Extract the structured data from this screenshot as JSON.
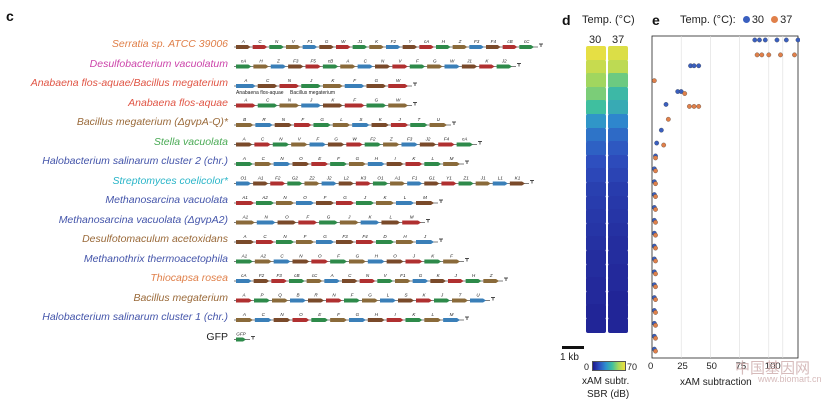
{
  "panels": {
    "c": "c",
    "d": "d",
    "e": "e"
  },
  "rows": [
    {
      "label": "Serratia sp. ATCC 39006",
      "color": "#e0804a",
      "italic": true,
      "genes": [
        "A",
        "C",
        "N",
        "V",
        "F1",
        "G",
        "W",
        "J1",
        "K",
        "F2",
        "Y",
        "cA",
        "H",
        "Z",
        "F3",
        "F4",
        "cB",
        "cC"
      ]
    },
    {
      "label": "Desulfobacterium vacuolatum",
      "color": "#cc44aa",
      "italic": true,
      "genes": [
        "cA",
        "H",
        "Z",
        "F3",
        "F5",
        "cB",
        "A",
        "C",
        "N",
        "V",
        "F",
        "G",
        "W",
        "J1",
        "K",
        "J2"
      ]
    },
    {
      "label": "Anabaena flos-aquae/Bacillus megaterium",
      "color": "#e05545",
      "italic": true,
      "genes": [
        "A",
        "C",
        "N",
        "J",
        "K",
        "F",
        "G",
        "W"
      ]
    },
    {
      "label": "Anabaena flos-aquae",
      "color": "#e05545",
      "italic": true,
      "genes": [
        "A",
        "C",
        "N",
        "J",
        "K",
        "F",
        "G",
        "W"
      ]
    },
    {
      "label": "Bacillus megaterium (ΔgvpA-Q)*",
      "color": "#9a6a3a",
      "italic": true,
      "genes": [
        "B",
        "R",
        "N",
        "F",
        "G",
        "L",
        "S",
        "K",
        "J",
        "T",
        "U"
      ]
    },
    {
      "label": "Stella vacuolata",
      "color": "#4aaa55",
      "italic": true,
      "genes": [
        "A",
        "C",
        "N",
        "V",
        "F",
        "G",
        "W",
        "F2",
        "Z",
        "F3",
        "J2",
        "F4",
        "cA"
      ]
    },
    {
      "label": "Halobacterium salinarum cluster 2 (chr.)",
      "color": "#4455aa",
      "italic": true,
      "genes": [
        "A",
        "C",
        "N",
        "O",
        "E",
        "F",
        "G",
        "H",
        "I",
        "K",
        "L",
        "M"
      ]
    },
    {
      "label": "Streptomyces coelicolor*",
      "color": "#2ab5c8",
      "italic": true,
      "genes": [
        "O1",
        "A1",
        "F2",
        "G2",
        "Z2",
        "J2",
        "L2",
        "K3",
        "O1",
        "A1",
        "F1",
        "G1",
        "Y1",
        "Z1",
        "J1",
        "L1",
        "K1"
      ]
    },
    {
      "label": "Methanosarcina vacuolata",
      "color": "#4455aa",
      "italic": true,
      "genes": [
        "A1",
        "A2",
        "N",
        "O",
        "F",
        "G",
        "J",
        "K",
        "L",
        "M"
      ]
    },
    {
      "label": "Methanosarcina vacuolata (ΔgvpA2)",
      "color": "#4455aa",
      "italic": true,
      "genes": [
        "A1",
        "N",
        "O",
        "F",
        "G",
        "J",
        "K",
        "L",
        "M"
      ]
    },
    {
      "label": "Desulfotomaculum acetoxidans",
      "color": "#9a6a3a",
      "italic": true,
      "genes": [
        "A",
        "C",
        "N",
        "F",
        "G",
        "F3",
        "F4",
        "D",
        "H",
        "J"
      ]
    },
    {
      "label": "Methanothrix thermoacetophila",
      "color": "#4455aa",
      "italic": true,
      "genes": [
        "A1",
        "A2",
        "C",
        "N",
        "O",
        "F",
        "G",
        "H",
        "O",
        "J",
        "K",
        "F"
      ]
    },
    {
      "label": "Thiocapsa rosea",
      "color": "#e0804a",
      "italic": true,
      "genes": [
        "cA",
        "F2",
        "F3",
        "cB",
        "cC",
        "A",
        "C",
        "N",
        "V",
        "F1",
        "G",
        "K",
        "J",
        "H",
        "Z"
      ]
    },
    {
      "label": "Bacillus megaterium",
      "color": "#9a6a3a",
      "italic": true,
      "genes": [
        "A",
        "P",
        "Q",
        "B",
        "R",
        "N",
        "F",
        "G",
        "L",
        "S",
        "K",
        "J",
        "T",
        "U"
      ]
    },
    {
      "label": "Halobacterium salinarum cluster 1 (chr.)",
      "color": "#4455aa",
      "italic": true,
      "genes": [
        "A",
        "C",
        "N",
        "O",
        "E",
        "F",
        "G",
        "H",
        "I",
        "K",
        "L",
        "M"
      ]
    },
    {
      "label": "GFP",
      "color": "#222222",
      "italic": false,
      "genes": [
        "GFP"
      ]
    }
  ],
  "cluster_sublabels": [
    "Anabaena flos-aquae",
    "Bacillus megaterium"
  ],
  "heatmap": {
    "title": "Temp. (°C)",
    "temps": [
      "30",
      "37"
    ],
    "values_30": [
      68,
      62,
      55,
      50,
      42,
      30,
      22,
      18,
      14,
      12,
      10,
      9,
      8,
      7,
      6,
      5,
      5,
      4,
      4,
      3,
      3
    ],
    "values_37": [
      66,
      60,
      48,
      40,
      36,
      26,
      20,
      16,
      13,
      11,
      9,
      8,
      7,
      6,
      5,
      5,
      4,
      4,
      3,
      3,
      3
    ],
    "scalebar_label": "1 kb",
    "colorbar_min": "0",
    "colorbar_max": "70",
    "colorbar_title_1": "xAM subtr.",
    "colorbar_title_2": "SBR (dB)"
  },
  "legend": {
    "title": "Temp. (°C):",
    "t30": "30",
    "t37": "37",
    "color30": "#3a5fbf",
    "color37": "#e0804a"
  },
  "chart_data": {
    "type": "scatter",
    "xlabel": "xAM subtraction",
    "x_ticks": [
      "0",
      "25",
      "50",
      "75",
      "100"
    ],
    "xlim": [
      0,
      125
    ],
    "rows": 25,
    "series": [
      {
        "name": "30",
        "values": [
          [
            88,
            0
          ],
          [
            92,
            0
          ],
          [
            97,
            0
          ],
          [
            107,
            0
          ],
          [
            115,
            0
          ],
          [
            125,
            0
          ],
          [
            33,
            2
          ],
          [
            36,
            2
          ],
          [
            40,
            2
          ],
          [
            22,
            4
          ],
          [
            25,
            4
          ],
          [
            12,
            5
          ],
          [
            8,
            7
          ],
          [
            4,
            8
          ],
          [
            3,
            9
          ],
          [
            2,
            10
          ],
          [
            2,
            11
          ],
          [
            2,
            12
          ],
          [
            2,
            13
          ],
          [
            2,
            14
          ],
          [
            2,
            15
          ],
          [
            2,
            16
          ],
          [
            2,
            17
          ],
          [
            2,
            18
          ],
          [
            2,
            19
          ],
          [
            2,
            20
          ],
          [
            2,
            21
          ],
          [
            2,
            22
          ],
          [
            2,
            23
          ],
          [
            2,
            24
          ]
        ]
      },
      {
        "name": "37",
        "values": [
          [
            90,
            1
          ],
          [
            94,
            1
          ],
          [
            100,
            1
          ],
          [
            110,
            1
          ],
          [
            122,
            1
          ],
          [
            2,
            3
          ],
          [
            28,
            4
          ],
          [
            32,
            5
          ],
          [
            36,
            5
          ],
          [
            40,
            5
          ],
          [
            14,
            6
          ],
          [
            10,
            8
          ],
          [
            3,
            9
          ],
          [
            3,
            10
          ],
          [
            3,
            11
          ],
          [
            3,
            12
          ],
          [
            3,
            13
          ],
          [
            3,
            14
          ],
          [
            3,
            15
          ],
          [
            3,
            16
          ],
          [
            3,
            17
          ],
          [
            3,
            18
          ],
          [
            3,
            19
          ],
          [
            3,
            20
          ],
          [
            3,
            21
          ],
          [
            3,
            22
          ],
          [
            3,
            23
          ],
          [
            3,
            24
          ]
        ]
      }
    ]
  },
  "watermark": {
    "cn": "中国基因网",
    "url": "www.biomart.cn"
  }
}
